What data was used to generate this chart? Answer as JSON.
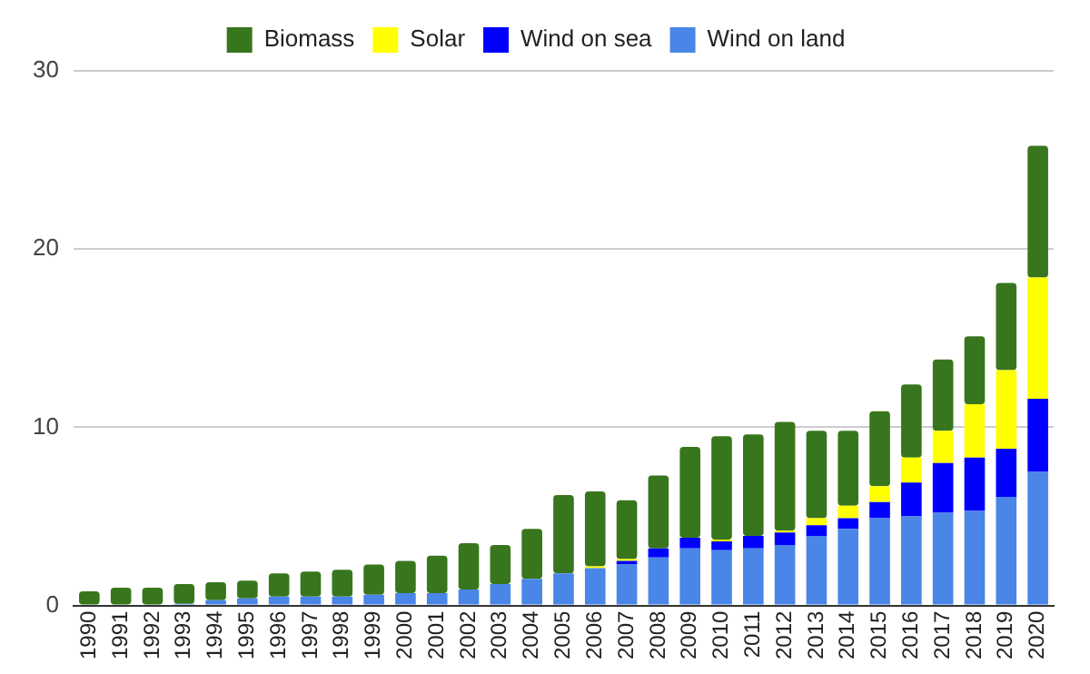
{
  "chart_data": {
    "type": "bar",
    "stacked": true,
    "legend": "top",
    "grid": "y",
    "categories": [
      "1990",
      "1991",
      "1992",
      "1993",
      "1994",
      "1995",
      "1996",
      "1997",
      "1998",
      "1999",
      "2000",
      "2001",
      "2002",
      "2003",
      "2004",
      "2005",
      "2006",
      "2007",
      "2008",
      "2009",
      "2010",
      "2011",
      "2012",
      "2013",
      "2014",
      "2015",
      "2016",
      "2017",
      "2018",
      "2019",
      "2020"
    ],
    "series": [
      {
        "name": "Wind on land",
        "color": "#4a86e8",
        "values": [
          0,
          0,
          0,
          0.1,
          0.3,
          0.4,
          0.5,
          0.5,
          0.5,
          0.6,
          0.7,
          0.7,
          0.9,
          1.2,
          1.5,
          1.8,
          2.1,
          2.3,
          2.7,
          3.2,
          3.1,
          3.2,
          3.4,
          3.9,
          4.3,
          4.9,
          5.0,
          5.2,
          5.3,
          6.1,
          7.5
        ]
      },
      {
        "name": "Wind on sea",
        "color": "#0000ff",
        "values": [
          0,
          0,
          0,
          0,
          0,
          0,
          0,
          0,
          0,
          0,
          0,
          0,
          0,
          0,
          0,
          0,
          0,
          0.2,
          0.5,
          0.6,
          0.5,
          0.7,
          0.7,
          0.6,
          0.6,
          0.9,
          1.9,
          2.8,
          3.0,
          2.7,
          4.1
        ]
      },
      {
        "name": "Solar",
        "color": "#ffff00",
        "values": [
          0,
          0,
          0,
          0,
          0,
          0,
          0,
          0,
          0,
          0,
          0,
          0,
          0,
          0,
          0,
          0,
          0.1,
          0.1,
          0,
          0,
          0.1,
          0,
          0.1,
          0.4,
          0.7,
          0.9,
          1.4,
          1.8,
          3.0,
          4.4,
          6.8
        ]
      },
      {
        "name": "Biomass",
        "color": "#38761d",
        "values": [
          0.8,
          1.0,
          1.0,
          1.1,
          1.0,
          1.0,
          1.3,
          1.4,
          1.5,
          1.7,
          1.8,
          2.1,
          2.6,
          2.2,
          2.8,
          4.4,
          4.2,
          3.3,
          4.1,
          5.1,
          5.8,
          5.7,
          6.1,
          4.9,
          4.2,
          4.2,
          4.1,
          4.0,
          3.8,
          4.9,
          7.4
        ]
      }
    ],
    "ylim": [
      0,
      30
    ],
    "yticks": [
      0,
      10,
      20,
      30
    ]
  }
}
